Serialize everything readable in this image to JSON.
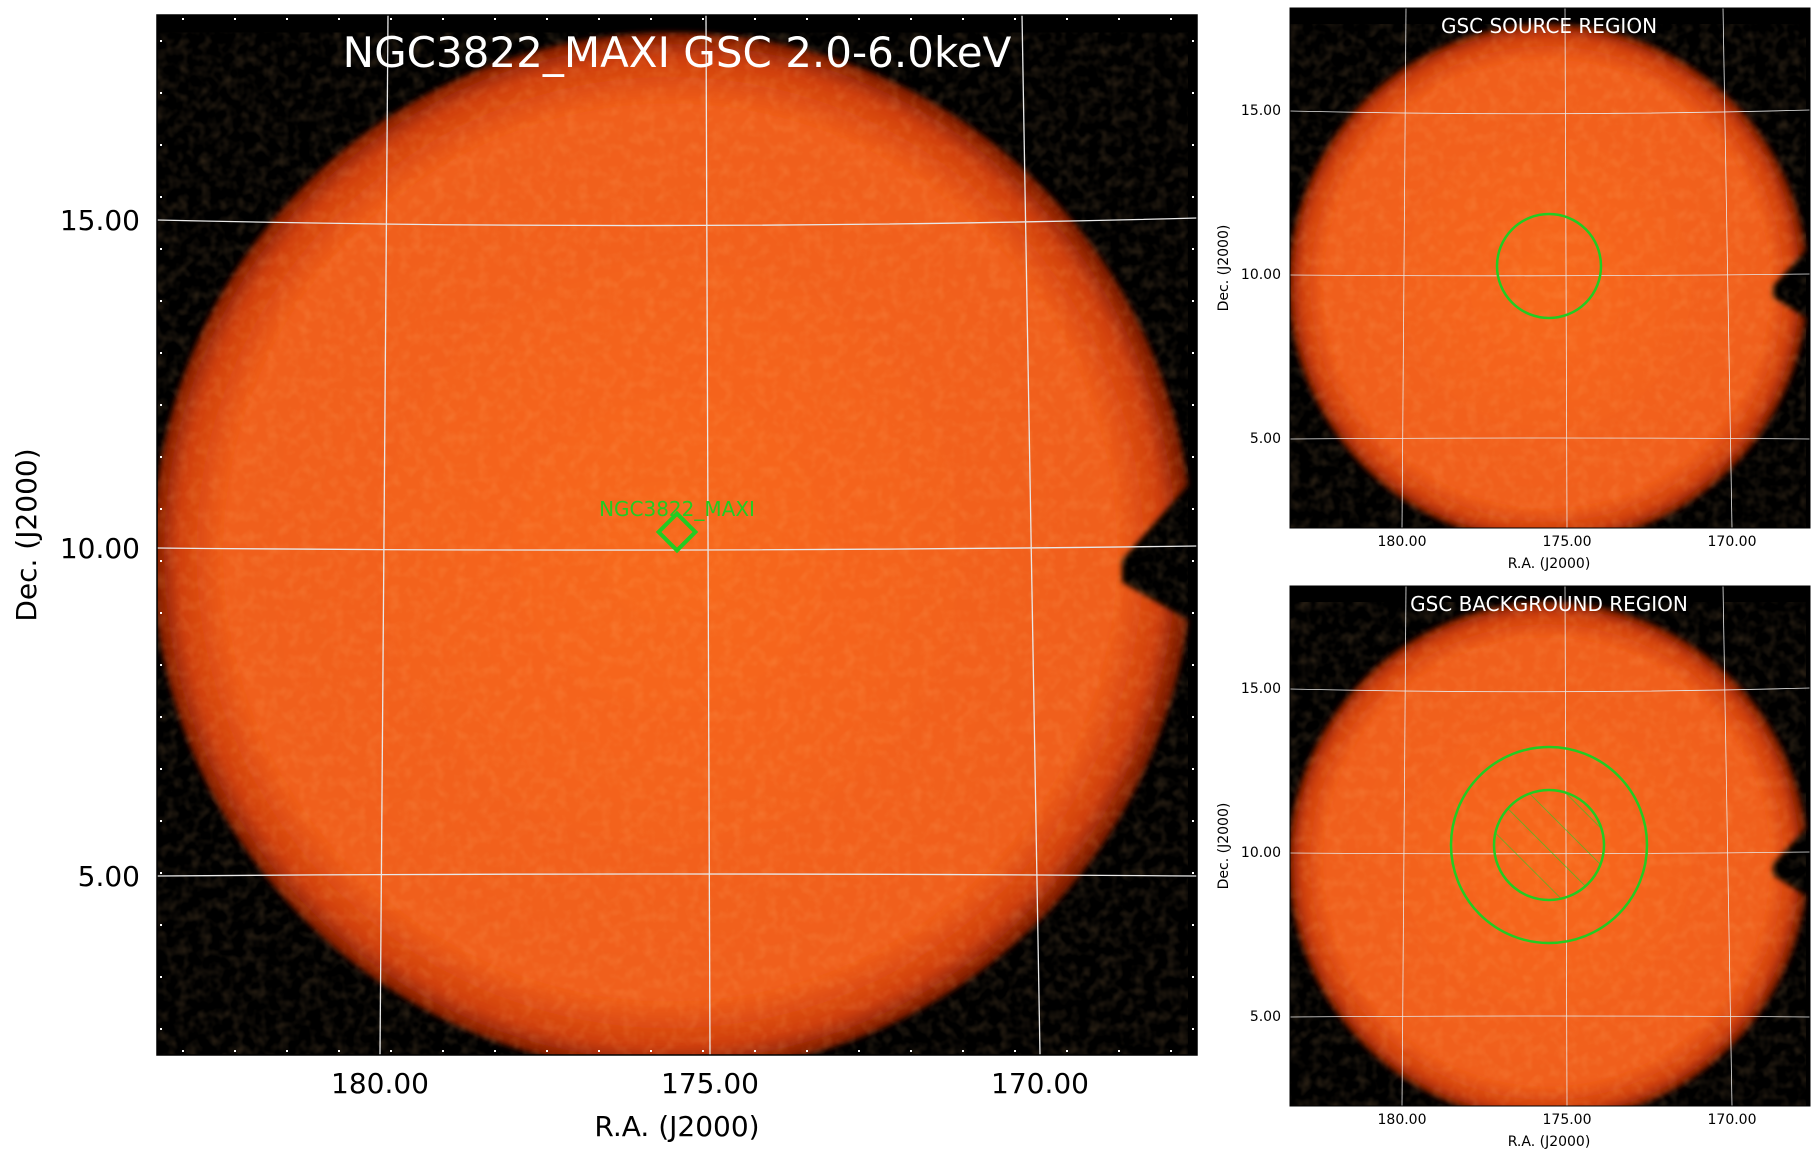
{
  "colors": {
    "background": "#000000",
    "map_core": "#f4621c",
    "map_edge": "#c0330a",
    "grid": "#e6e6e6",
    "region": "#22cc22",
    "title": "#ffffff"
  },
  "main_panel": {
    "title": "NGC3822_MAXI GSC 2.0-6.0keV",
    "source_label": "NGC3822_MAXI",
    "xlabel": "R.A. (J2000)",
    "ylabel": "Dec. (J2000)",
    "x_ticks": [
      "180.00",
      "175.00",
      "170.00"
    ],
    "y_ticks": [
      "15.00",
      "10.00",
      "5.00"
    ]
  },
  "source_panel": {
    "title": "GSC SOURCE REGION",
    "xlabel": "R.A. (J2000)",
    "ylabel": "Dec. (J2000)",
    "x_ticks": [
      "180.00",
      "175.00",
      "170.00"
    ],
    "y_ticks": [
      "15.00",
      "10.00",
      "5.00"
    ]
  },
  "background_panel": {
    "title": "GSC BACKGROUND REGION",
    "xlabel": "R.A. (J2000)",
    "ylabel": "Dec. (J2000)",
    "x_ticks": [
      "180.00",
      "175.00",
      "170.00"
    ],
    "y_ticks": [
      "15.00",
      "10.00",
      "5.00"
    ]
  }
}
